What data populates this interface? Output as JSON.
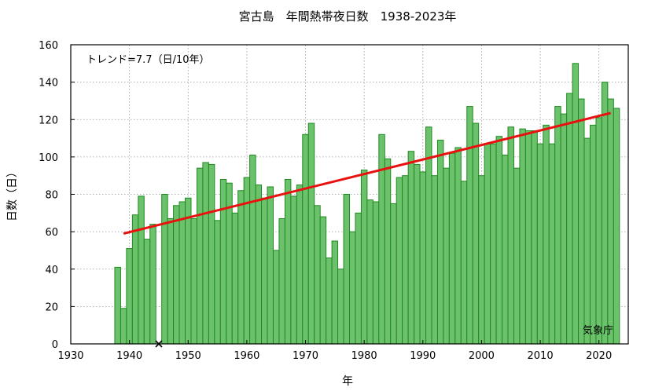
{
  "chart_data": {
    "type": "bar",
    "title": "宮古島　年間熱帯夜日数　1938-2023年",
    "xlabel": "年",
    "ylabel": "日数（日）",
    "trend_label": "トレンド=7.7（日/10年）",
    "source_label": "気象庁",
    "xlim": [
      1930,
      2025
    ],
    "ylim": [
      0,
      160
    ],
    "x_ticks": [
      "1930",
      "1940",
      "1950",
      "1960",
      "1970",
      "1980",
      "1990",
      "2000",
      "2010",
      "2020"
    ],
    "y_ticks": [
      "0",
      "20",
      "40",
      "60",
      "80",
      "100",
      "120",
      "140",
      "160"
    ],
    "grid": true,
    "years": [
      1938,
      1939,
      1940,
      1941,
      1942,
      1943,
      1944,
      1945,
      1946,
      1947,
      1948,
      1949,
      1950,
      1951,
      1952,
      1953,
      1954,
      1955,
      1956,
      1957,
      1958,
      1959,
      1960,
      1961,
      1962,
      1963,
      1964,
      1965,
      1966,
      1967,
      1968,
      1969,
      1970,
      1971,
      1972,
      1973,
      1974,
      1975,
      1976,
      1977,
      1978,
      1979,
      1980,
      1981,
      1982,
      1983,
      1984,
      1985,
      1986,
      1987,
      1988,
      1989,
      1990,
      1991,
      1992,
      1993,
      1994,
      1995,
      1996,
      1997,
      1998,
      1999,
      2000,
      2001,
      2002,
      2003,
      2004,
      2005,
      2006,
      2007,
      2008,
      2009,
      2010,
      2011,
      2012,
      2013,
      2014,
      2015,
      2016,
      2017,
      2018,
      2019,
      2020,
      2021,
      2022,
      2023
    ],
    "values": [
      41,
      19,
      51,
      69,
      79,
      56,
      64,
      null,
      80,
      67,
      74,
      76,
      78,
      67,
      94,
      97,
      96,
      66,
      88,
      86,
      70,
      82,
      89,
      101,
      85,
      78,
      84,
      50,
      67,
      88,
      79,
      85,
      112,
      118,
      74,
      68,
      46,
      55,
      40,
      80,
      60,
      70,
      93,
      77,
      76,
      112,
      99,
      75,
      89,
      90,
      103,
      96,
      92,
      116,
      90,
      109,
      94,
      102,
      105,
      87,
      127,
      118,
      90,
      107,
      107,
      111,
      101,
      116,
      94,
      115,
      114,
      114,
      107,
      117,
      107,
      127,
      123,
      134,
      150,
      131,
      110,
      117,
      121,
      140,
      131,
      126
    ],
    "missing_years": [
      1945
    ],
    "trend": {
      "x": [
        1939,
        2022
      ],
      "y": [
        59,
        123.5
      ]
    },
    "colors": {
      "bar_fill": "#6cc26c",
      "bar_edge": "#1f8a1f",
      "trend": "#e8110f"
    }
  }
}
